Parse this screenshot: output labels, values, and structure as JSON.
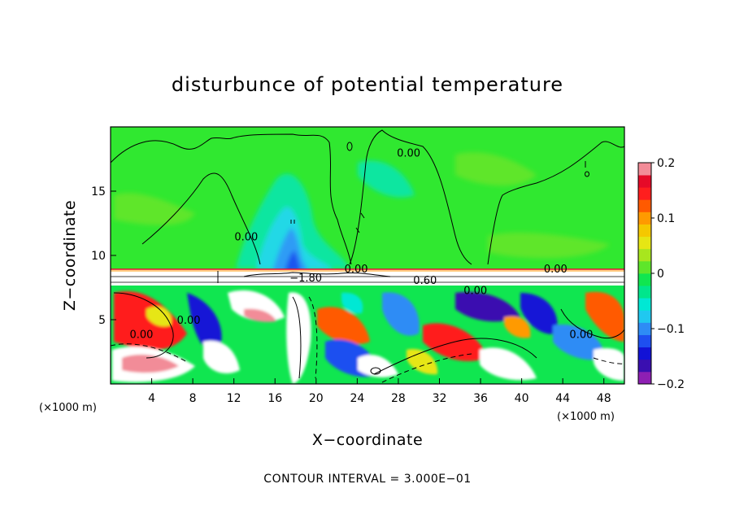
{
  "chart_data": {
    "type": "heatmap",
    "title": "disturbunce of potential temperature",
    "xlabel": "X−coordinate",
    "ylabel": "Z−coordinate",
    "x_unit": "(×1000 m)",
    "y_unit": "(×1000 m)",
    "xlim": [
      0,
      50
    ],
    "ylim": [
      0,
      20
    ],
    "x_ticks": [
      4,
      8,
      12,
      16,
      20,
      24,
      28,
      32,
      36,
      40,
      44,
      48
    ],
    "y_ticks": [
      5,
      10,
      15
    ],
    "grid": false,
    "colorbar": {
      "range": [
        -0.2,
        0.2
      ],
      "ticks": [
        {
          "value": 0.2,
          "label": "0.2"
        },
        {
          "value": 0.1,
          "label": "0.1"
        },
        {
          "value": 0,
          "label": "0"
        },
        {
          "value": -0.1,
          "label": "−0.1"
        },
        {
          "value": -0.2,
          "label": "−0.2"
        }
      ],
      "colors": [
        "#8e1fb3",
        "#3a0fb0",
        "#1212d6",
        "#1e4ff0",
        "#2e8cf5",
        "#20c8f0",
        "#00e8d4",
        "#00e68c",
        "#10e650",
        "#5ee62a",
        "#a8e61e",
        "#e6e614",
        "#f5c800",
        "#ff9a00",
        "#ff5a00",
        "#ff1e1e",
        "#e60a28",
        "#f28c98"
      ]
    },
    "contour_labels": [
      {
        "x": 13.2,
        "z": 11.5,
        "text": "0.00"
      },
      {
        "x": 29.0,
        "z": 18.0,
        "text": "0.00"
      },
      {
        "x": 23.9,
        "z": 9.0,
        "text": "0.00"
      },
      {
        "x": 43.3,
        "z": 9.0,
        "text": "0.00"
      },
      {
        "x": 19.0,
        "z": 8.3,
        "text": "−1.80"
      },
      {
        "x": 30.6,
        "z": 8.1,
        "text": "0.60"
      },
      {
        "x": 35.5,
        "z": 7.3,
        "text": "0.00"
      },
      {
        "x": 3.0,
        "z": 3.9,
        "text": "0.00"
      },
      {
        "x": 7.6,
        "z": 5.0,
        "text": "0.00"
      },
      {
        "x": 45.8,
        "z": 3.9,
        "text": "0.00"
      }
    ],
    "footnote": "CONTOUR INTERVAL = 3.000E−01"
  }
}
